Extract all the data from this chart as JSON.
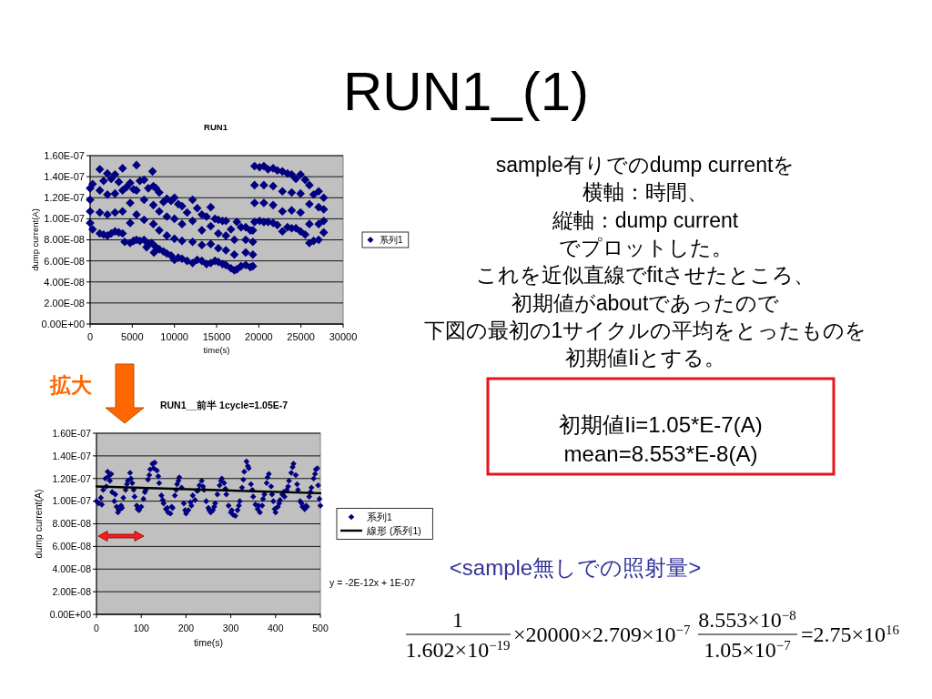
{
  "chart_data": [
    {
      "type": "other",
      "title": "RUN1_(1)"
    },
    {
      "type": "scatter",
      "title": "RUN1",
      "xlabel": "time(s)",
      "ylabel": "dump current(A)",
      "xlim": [
        0,
        30000
      ],
      "xticks": [
        0,
        5000,
        10000,
        15000,
        20000,
        25000,
        30000
      ],
      "ylim": [
        0,
        1.6e-07
      ],
      "yticks": [
        {
          "value": 0,
          "label": "0.00E+00"
        },
        {
          "value": 2e-08,
          "label": "2.00E-08"
        },
        {
          "value": 4e-08,
          "label": "4.00E-08"
        },
        {
          "value": 6e-08,
          "label": "6.00E-08"
        },
        {
          "value": 8e-08,
          "label": "8.00E-08"
        },
        {
          "value": 1e-07,
          "label": "1.00E-07"
        },
        {
          "value": 1.2e-07,
          "label": "1.20E-07"
        },
        {
          "value": 1.4e-07,
          "label": "1.40E-07"
        },
        {
          "value": 1.6e-07,
          "label": "1.60E-07"
        }
      ],
      "grid": "y",
      "legend": "right",
      "marker": "diamond",
      "series": [
        {
          "name": "系列1",
          "color": "#000080",
          "x": [
            0,
            300,
            1150,
            1600,
            2050,
            2500,
            2950,
            3400,
            3850,
            4300,
            4750,
            5150,
            5500,
            5900,
            6400,
            6900,
            7400,
            7800,
            8200,
            8700,
            9100,
            9600,
            10000,
            10450,
            10900,
            11500,
            12150,
            12700,
            13250,
            13800,
            14300,
            14800,
            15200,
            15700,
            16100,
            16700,
            17400,
            17900,
            18450,
            19000,
            19300,
            19500,
            20100,
            20600,
            21100,
            21700,
            22200,
            22800,
            23400,
            23900,
            24400,
            24950,
            25500,
            26000,
            26500,
            27100,
            27700,
            0,
            300,
            1150,
            1600,
            2050,
            2500,
            2950,
            3400,
            3850,
            4100,
            4750,
            5150,
            5500,
            5900,
            6400,
            6700,
            6900,
            7300,
            7570,
            7800,
            8200,
            8700,
            9100,
            9600,
            10000,
            10450,
            10900,
            11500,
            12150,
            12700,
            13250,
            13800,
            14300,
            14800,
            15200,
            15700,
            16100,
            16700,
            17100,
            17400,
            17900,
            18450,
            19000,
            19300,
            19500,
            20100,
            20600,
            21100,
            21700,
            22200,
            22800,
            23400,
            23900,
            24400,
            24950,
            25500,
            26000,
            26500,
            27100,
            27700,
            0,
            1150,
            2050,
            2950,
            3850,
            4750,
            5500,
            6400,
            7500,
            8200,
            9100,
            10000,
            10900,
            12150,
            13250,
            14300,
            15200,
            16100,
            17100,
            18450,
            19300,
            19500,
            20600,
            21700,
            22800,
            23900,
            24950,
            26000,
            27100,
            27700,
            0,
            1150,
            2050,
            2950,
            3850,
            4750,
            5500,
            6400,
            7500,
            8200,
            9100,
            10000,
            10900,
            12150,
            13250,
            14300,
            15200,
            16100,
            17100,
            18450,
            19300,
            19500,
            20600,
            21700,
            22800,
            23900,
            24950,
            26000,
            27100,
            27700,
            7500
          ],
          "values": [
            1.29e-07,
            1.33e-07,
            1.47e-07,
            1.36e-07,
            1.43e-07,
            1.38e-07,
            1.42e-07,
            1.35e-07,
            1.48e-07,
            1.3e-07,
            1.34e-07,
            1.28e-07,
            1.51e-07,
            1.36e-07,
            1.37e-07,
            1.29e-07,
            1.45e-07,
            1.29e-07,
            1.25e-07,
            1.16e-07,
            1.19e-07,
            1.17e-07,
            1.2e-07,
            1.14e-07,
            1.12e-07,
            1.06e-07,
            1.18e-07,
            1.1e-07,
            1.04e-07,
            1.02e-07,
            1.11e-07,
            1e-07,
            9.9e-08,
            9.8e-08,
            9.8e-08,
            9e-08,
            9.7e-08,
            9.2e-08,
            9.2e-08,
            8.9e-08,
            8.9e-08,
            1.5e-07,
            1.49e-07,
            1.5e-07,
            1.47e-07,
            1.48e-07,
            1.46e-07,
            1.45e-07,
            1.43e-07,
            1.42e-07,
            1.38e-07,
            1.42e-07,
            1.37e-07,
            1.32e-07,
            1.23e-07,
            1.26e-07,
            1.2e-07,
            9.6e-08,
            9e-08,
            8.6e-08,
            8.5e-08,
            8.4e-08,
            8.6e-08,
            8.8e-08,
            8.7e-08,
            8.6e-08,
            7.8e-08,
            7.7e-08,
            7.9e-08,
            8e-08,
            7.9e-08,
            8e-08,
            7.3e-08,
            7.6e-08,
            7.7e-08,
            6.8e-08,
            7.3e-08,
            7.1e-08,
            6.9e-08,
            6.7e-08,
            6.5e-08,
            6.1e-08,
            6.3e-08,
            6.2e-08,
            6e-08,
            5.8e-08,
            6.1e-08,
            6e-08,
            5.7e-08,
            5.8e-08,
            6e-08,
            5.9e-08,
            5.7e-08,
            5.6e-08,
            5.3e-08,
            5.1e-08,
            5.2e-08,
            5.5e-08,
            5.6e-08,
            5.4e-08,
            5.5e-08,
            9.7e-08,
            9.8e-08,
            9.7e-08,
            9.7e-08,
            9.6e-08,
            9.4e-08,
            8.8e-08,
            9.2e-08,
            9.1e-08,
            9.1e-08,
            8.8e-08,
            8.5e-08,
            7.7e-08,
            7.9e-08,
            8e-08,
            8.7e-08,
            1.18e-07,
            1.27e-07,
            1.23e-07,
            1.24e-07,
            1.27e-07,
            1.15e-07,
            1.27e-07,
            1.18e-07,
            1.13e-07,
            1.07e-07,
            1.02e-07,
            1e-07,
            9.5e-08,
            9.8e-08,
            8.9e-08,
            9.3e-08,
            8.6e-08,
            8.4e-08,
            8e-08,
            8e-08,
            7.8e-08,
            1.32e-07,
            1.32e-07,
            1.31e-07,
            1.26e-07,
            1.25e-07,
            1.24e-07,
            1.14e-07,
            1.11e-07,
            1.09e-07,
            1.07e-07,
            1.06e-07,
            1.04e-07,
            1.06e-07,
            1.07e-07,
            9.6e-08,
            1.04e-07,
            9.9e-08,
            9.5e-08,
            8.9e-08,
            8.4e-08,
            8.1e-08,
            7.9e-08,
            7.8e-08,
            7.5e-08,
            7.6e-08,
            7.2e-08,
            7e-08,
            6.6e-08,
            6.8e-08,
            6.6e-08,
            1.15e-07,
            1.15e-07,
            1.13e-07,
            1.07e-07,
            1.08e-07,
            1.06e-07,
            9.5e-08,
            9.5e-08,
            9.8e-08,
            1.31e-07
          ]
        }
      ]
    },
    {
      "type": "other",
      "annotations": [
        "sample有りでのdump currentを",
        "横軸：時間、",
        "縦軸：dump current",
        "でプロットした。",
        "これを近似直線でfitさせたところ、",
        "初期値がaboutであったので",
        "下図の最初の1サイクルの平均をとったものを",
        "初期値Iiとする。"
      ]
    },
    {
      "type": "other",
      "annotations": [
        "初期値Ii=1.05*E-7(A)",
        "mean=8.553*E-8(A)"
      ]
    },
    {
      "type": "scatter",
      "title": "RUN1__前半 1cycle=1.05E-7",
      "xlabel": "time(s)",
      "ylabel": "dump current(A)",
      "xlim": [
        0,
        500
      ],
      "xticks": [
        0,
        100,
        200,
        300,
        400,
        500
      ],
      "ylim": [
        0,
        1.6e-07
      ],
      "yticks": [
        {
          "value": 0,
          "label": "0.00E+00"
        },
        {
          "value": 2e-08,
          "label": "2.00E-08"
        },
        {
          "value": 4e-08,
          "label": "4.00E-08"
        },
        {
          "value": 6e-08,
          "label": "6.00E-08"
        },
        {
          "value": 8e-08,
          "label": "8.00E-08"
        },
        {
          "value": 1e-07,
          "label": "1.00E-07"
        },
        {
          "value": 1.2e-07,
          "label": "1.20E-07"
        },
        {
          "value": 1.4e-07,
          "label": "1.40E-07"
        },
        {
          "value": 1.6e-07,
          "label": "1.60E-07"
        }
      ],
      "grid": "y",
      "legend": "right",
      "marker": "diamond",
      "annotations": [
        "拡大",
        "y = -2E-12x + 1E-07"
      ],
      "series": [
        {
          "name": "系列1",
          "color": "#000080",
          "x": [
            0,
            5,
            10,
            15,
            20,
            25,
            30,
            35,
            40,
            45,
            50,
            55,
            60,
            65,
            70,
            75,
            80,
            85,
            90,
            95,
            100,
            105,
            110,
            115,
            120,
            125,
            130,
            135,
            140,
            145,
            150,
            155,
            160,
            165,
            170,
            175,
            180,
            185,
            190,
            195,
            200,
            205,
            210,
            215,
            220,
            225,
            230,
            235,
            240,
            245,
            250,
            255,
            260,
            265,
            270,
            275,
            280,
            285,
            290,
            295,
            300,
            305,
            310,
            315,
            320,
            325,
            330,
            335,
            340,
            345,
            350,
            355,
            360,
            365,
            370,
            375,
            380,
            385,
            390,
            395,
            400,
            405,
            410,
            415,
            420,
            425,
            430,
            435,
            440,
            445,
            450,
            455,
            460,
            465,
            470,
            475,
            480,
            485,
            490,
            495,
            500,
            12,
            22,
            27,
            33,
            42,
            48,
            57,
            68,
            77,
            83,
            92,
            108,
            118,
            128,
            138,
            148,
            158,
            168,
            178,
            183,
            198,
            212,
            228,
            238,
            252,
            263,
            278,
            288,
            302,
            318,
            328,
            338,
            348,
            362,
            372,
            382,
            392,
            398,
            408,
            418,
            428,
            438,
            448,
            458,
            468,
            478,
            488,
            493,
            498
          ],
          "values": [
            1e-07,
            9.8e-08,
            1.03e-07,
            1.1e-07,
            1.2e-07,
            1.26e-07,
            1.18e-07,
            1.08e-07,
            1e-07,
            9.5e-08,
            9.2e-08,
            9.6e-08,
            1.03e-07,
            1.1e-07,
            1.18e-07,
            1.25e-07,
            1.16e-07,
            1.04e-07,
            9.6e-08,
            9.2e-08,
            9.5e-08,
            1.02e-07,
            1.1e-07,
            1.19e-07,
            1.28e-07,
            1.33e-07,
            1.34e-07,
            1.27e-07,
            1.16e-07,
            1.05e-07,
            9.8e-08,
            9.3e-08,
            9e-08,
            8.9e-08,
            9.4e-08,
            1.05e-07,
            1.15e-07,
            1.21e-07,
            1.12e-07,
            9.8e-08,
            8.9e-08,
            9.2e-08,
            9.9e-08,
            1.05e-07,
            1.01e-07,
            1.09e-07,
            1.14e-07,
            1.18e-07,
            1.1e-07,
            1e-07,
            9.4e-08,
            9e-08,
            9.2e-08,
            9.8e-08,
            1.06e-07,
            1.14e-07,
            1.2e-07,
            1.16e-07,
            1.06e-07,
            9.6e-08,
            9e-08,
            8.8e-08,
            8.7e-08,
            9.2e-08,
            1e-07,
            1.12e-07,
            1.26e-07,
            1.35e-07,
            1.29e-07,
            1.15e-07,
            1.04e-07,
            9.7e-08,
            9.3e-08,
            9e-08,
            9.6e-08,
            1.06e-07,
            1.16e-07,
            1.24e-07,
            1.13e-07,
            1e-07,
            9e-08,
            9.5e-08,
            1.01e-07,
            1.06e-07,
            1.04e-07,
            1.1e-07,
            1.18e-07,
            1.25e-07,
            1.33e-07,
            1.23e-07,
            1.1e-07,
            1e-07,
            9.5e-08,
            9.3e-08,
            9.5e-08,
            1.04e-07,
            1.12e-07,
            1.2e-07,
            1.28e-07,
            1.14e-07,
            9.6e-08,
            9.7e-08,
            1.13e-07,
            1.22e-07,
            1.24e-07,
            1.06e-07,
            9e-08,
            9.4e-08,
            1.15e-07,
            1.2e-07,
            1.1e-07,
            9.3e-08,
            1.08e-07,
            1.23e-07,
            1.29e-07,
            1.22e-07,
            1.01e-07,
            9.4e-08,
            9.5e-08,
            1.1e-07,
            1.18e-07,
            9.2e-08,
            9.6e-08,
            1.1e-07,
            1.13e-07,
            9.2e-08,
            9.5e-08,
            1.18e-07,
            1.11e-07,
            9.2e-08,
            9.6e-08,
            1.19e-07,
            1.31e-07,
            1.1e-07,
            9.6e-08,
            1.02e-07,
            1.21e-07,
            1.06e-07,
            9.3e-08,
            9.8e-08,
            1.08e-07,
            1.13e-07,
            1.3e-07,
            1.15e-07,
            9.8e-08,
            9.6e-08,
            1.08e-07,
            1.24e-07,
            1.29e-07,
            1.02e-07
          ]
        },
        {
          "name": "線形 (系列1)",
          "type": "line",
          "color": "#000000",
          "marker": "none",
          "x": [
            0,
            500
          ],
          "values": [
            1.13e-07,
            1.07e-07
          ]
        }
      ]
    },
    {
      "type": "other",
      "title": "<sample無しでの照射量>",
      "annotations": [
        "1",
        "1.602×10$^{−19}$",
        "×20000×2.709×10$^{−7}$",
        "8.553×10$^{−8}$",
        "1.05×10$^{−7}$",
        "=2.75×10$^{16}$"
      ]
    }
  ]
}
